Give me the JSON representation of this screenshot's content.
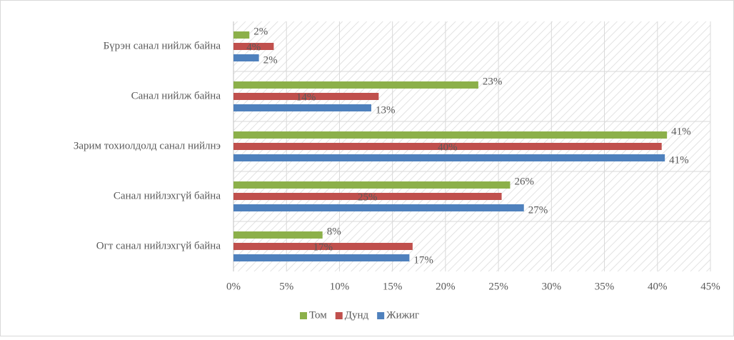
{
  "chart_data": {
    "type": "hbar",
    "categories": [
      "Бүрэн санал нийлж байна",
      "Санал нийлж байна",
      "Зарим тохиолдолд санал нийлнэ",
      "Санал нийлэхгүй байна",
      "Огт санал нийлэхгүй байна"
    ],
    "series": [
      {
        "name": "Том",
        "color": "#8cb04a",
        "values": [
          1.5,
          23.1,
          40.9,
          26.1,
          8.4
        ],
        "value_labels": [
          "2%",
          "23%",
          "41%",
          "26%",
          "8%"
        ]
      },
      {
        "name": "Дунд",
        "color": "#c0504d",
        "values": [
          3.8,
          13.7,
          40.4,
          25.3,
          16.9
        ],
        "value_labels": [
          "4%",
          "14%",
          "40%",
          "25%",
          "17%"
        ]
      },
      {
        "name": "Жижиг",
        "color": "#4f81bd",
        "values": [
          2.4,
          13.0,
          40.7,
          27.4,
          16.6
        ],
        "value_labels": [
          "2%",
          "13%",
          "41%",
          "27%",
          "17%"
        ]
      }
    ],
    "xlim": [
      0,
      45
    ],
    "xticks": [
      {
        "value": 0,
        "label": "0%"
      },
      {
        "value": 5,
        "label": "5%"
      },
      {
        "value": 10,
        "label": "10%"
      },
      {
        "value": 15,
        "label": "15%"
      },
      {
        "value": 20,
        "label": "20%"
      },
      {
        "value": 25,
        "label": "25%"
      },
      {
        "value": 30,
        "label": "30%"
      },
      {
        "value": 35,
        "label": "35%"
      },
      {
        "value": 40,
        "label": "40%"
      },
      {
        "value": 45,
        "label": "45%"
      }
    ],
    "grid": true,
    "legend": "bottom"
  }
}
